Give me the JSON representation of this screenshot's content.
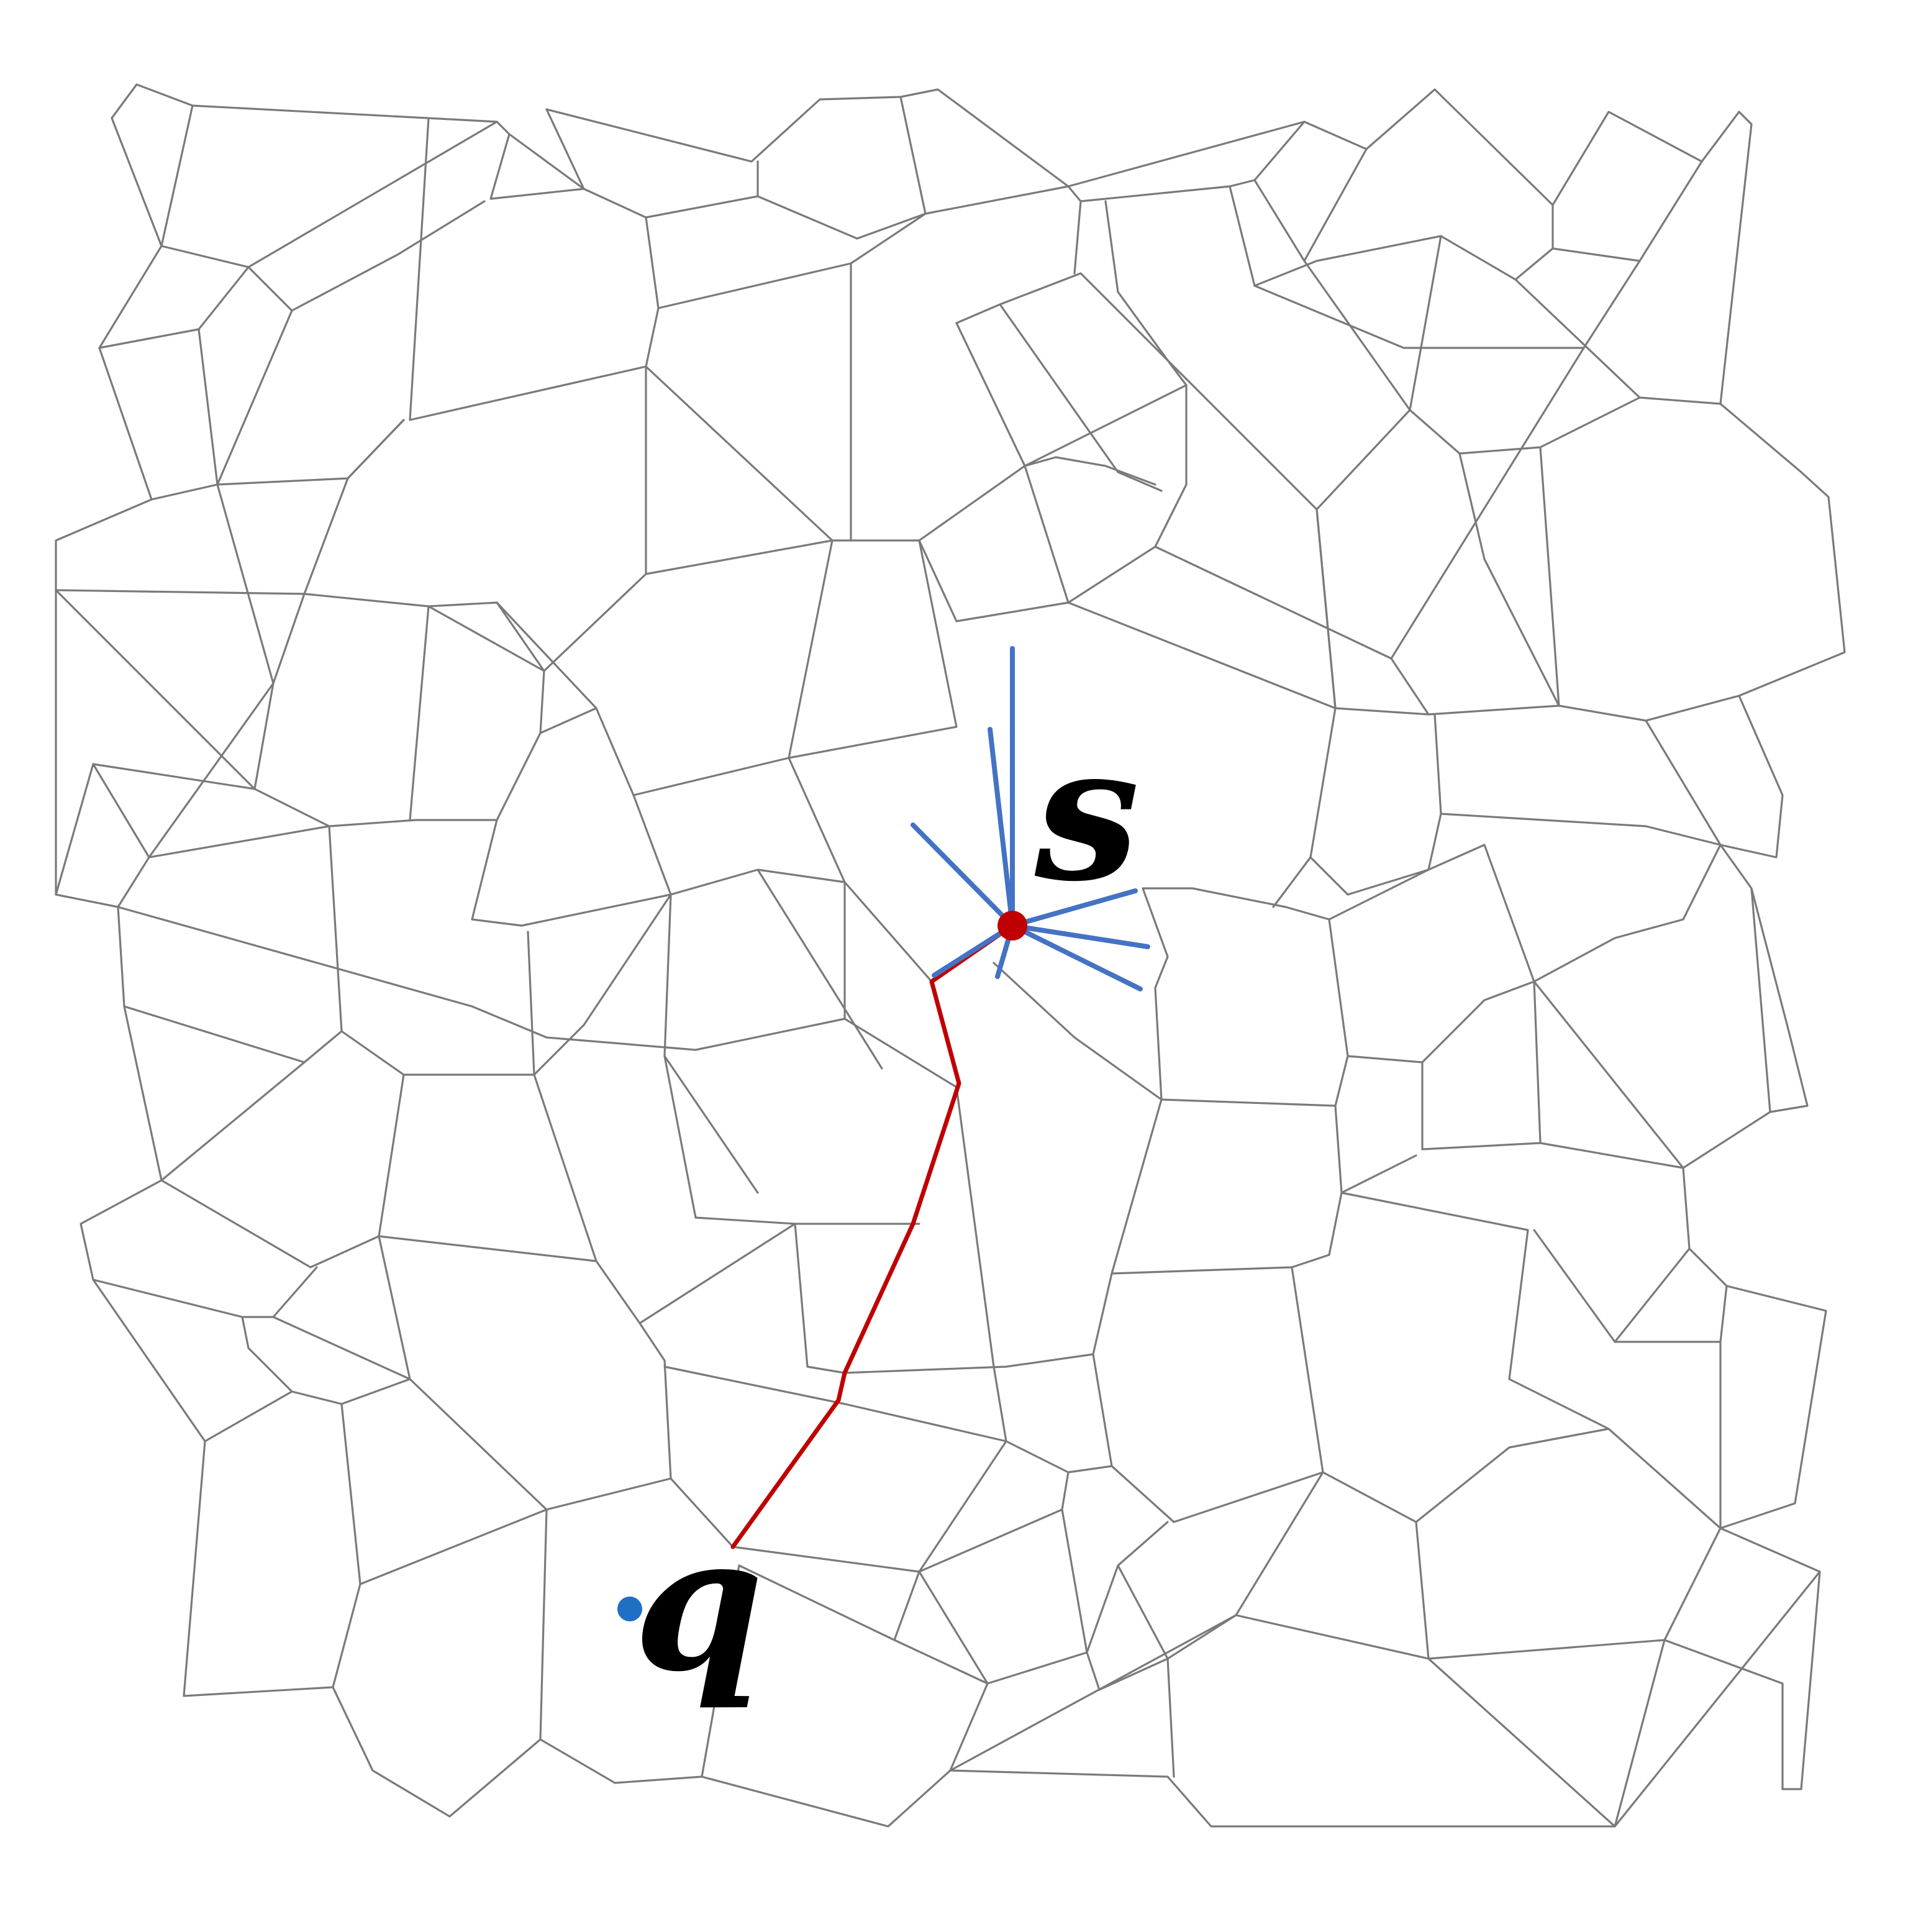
{
  "labels": {
    "source": "s",
    "query": "q"
  },
  "colors": {
    "mesh_edge": "#7a7a7a",
    "path": "#c00000",
    "source_point": "#c00000",
    "star_edge": "#4472c4",
    "query_point": "#1f6fc4",
    "label_text": "#000000"
  }
}
